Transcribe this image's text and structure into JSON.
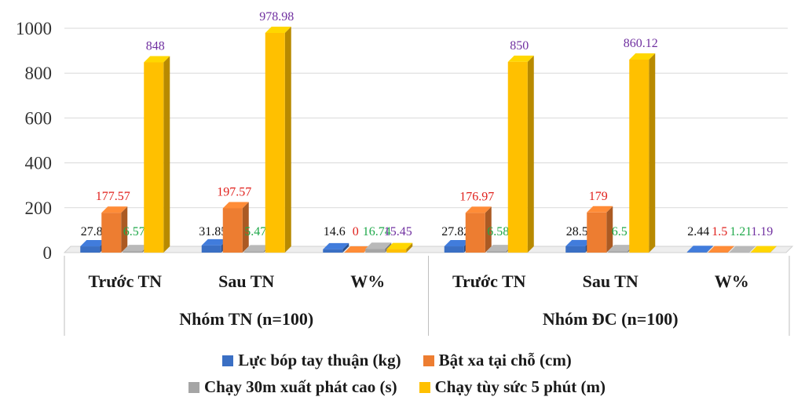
{
  "chart_data": {
    "type": "bar",
    "style": "3d-clustered-column",
    "groups": [
      {
        "label": "Nhóm TN (n=100)",
        "categories": [
          "Trước TN",
          "Sau TN",
          "W%"
        ]
      },
      {
        "label": "Nhóm ĐC (n=100)",
        "categories": [
          "Trước TN",
          "Sau TN",
          "W%"
        ]
      }
    ],
    "categories": [
      "Trước TN",
      "Sau TN",
      "W%",
      "Trước TN",
      "Sau TN",
      "W%"
    ],
    "series": [
      {
        "name": "Lực bóp tay thuận (kg)",
        "values": [
          27.8,
          31.85,
          14.6,
          27.82,
          28.5,
          2.44
        ],
        "labels": [
          "27.8",
          "31.85",
          "14.6",
          "27.82",
          "28.5",
          "2.44"
        ],
        "color": "#3a6fc4",
        "label_color": "#111111"
      },
      {
        "name": "Bật xa tại chỗ (cm)",
        "values": [
          177.57,
          197.57,
          0,
          176.97,
          179,
          1.5
        ],
        "labels": [
          "177.57",
          "197.57",
          "0",
          "176.97",
          "179",
          "1.5"
        ],
        "color": "#ed7d31",
        "label_color": "#e0201c"
      },
      {
        "name": "Chạy 30m xuất phát cao (s)",
        "values": [
          6.57,
          5.47,
          16.74,
          6.58,
          6.5,
          1.21
        ],
        "labels": [
          "6.57",
          "5.47",
          "16.74",
          "6.58",
          "6.5",
          "1.21"
        ],
        "color": "#a5a5a5",
        "label_color": "#1fa84a"
      },
      {
        "name": "Chạy tùy sức 5 phút (m)",
        "values": [
          848,
          978.98,
          15.45,
          850,
          860.12,
          1.19
        ],
        "labels": [
          "848",
          "978.98",
          "15.45",
          "850",
          "860.12",
          "1.19"
        ],
        "color": "#ffc000",
        "label_color": "#7030a0"
      }
    ],
    "ylim": [
      0,
      1000
    ],
    "yticks": [
      "0",
      "200",
      "400",
      "600",
      "800",
      "1000"
    ],
    "grid": true,
    "legend_position": "bottom"
  }
}
